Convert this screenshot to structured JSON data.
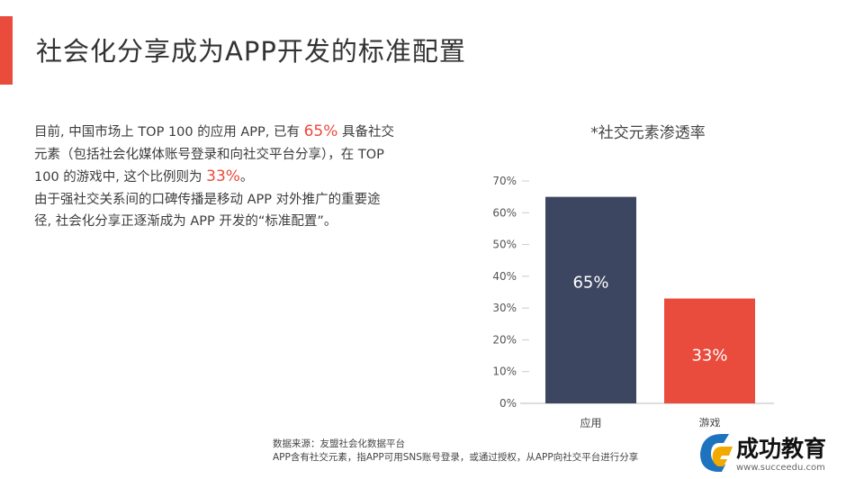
{
  "page": {
    "title": "社会化分享成为APP开发的标准配置",
    "paragraph": {
      "p1_a": "目前, 中国市场上 TOP 100 的应用 APP, 已有 ",
      "p1_h1": "65%",
      "p1_b": " 具备社交元素（包括社会化媒体账号登录和向社交平台分享），在 TOP 100 的游戏中, 这个比例则为 ",
      "p1_h2": "33%",
      "p1_c": "。",
      "p2": "由于强社交关系间的口碑传播是移动 APP 对外推广的重要途径, 社会化分享正逐渐成为 APP 开发的“标准配置”。"
    },
    "footnote": {
      "line1": "数据来源：友盟社会化数据平台",
      "line2": "APP含有社交元素，指APP可用SNS账号登录，或通过授权，从APP向社交平台进行分享"
    },
    "logo": {
      "name": "成功教育",
      "url": "www.succeedu.com"
    }
  },
  "colors": {
    "accent": "#e94b3c",
    "navy": "#3d4660",
    "text": "#3c3c3c"
  },
  "chart_data": {
    "type": "bar",
    "title": "*社交元素渗透率",
    "categories": [
      "应用",
      "游戏"
    ],
    "values": [
      65,
      33
    ],
    "value_labels": [
      "65%",
      "33%"
    ],
    "bar_colors": [
      "#3d4660",
      "#e94b3c"
    ],
    "yticks": [
      "0%",
      "10%",
      "20%",
      "30%",
      "40%",
      "50%",
      "60%",
      "70%"
    ],
    "ylim": [
      0,
      70
    ],
    "grid": false,
    "legend": "none"
  }
}
